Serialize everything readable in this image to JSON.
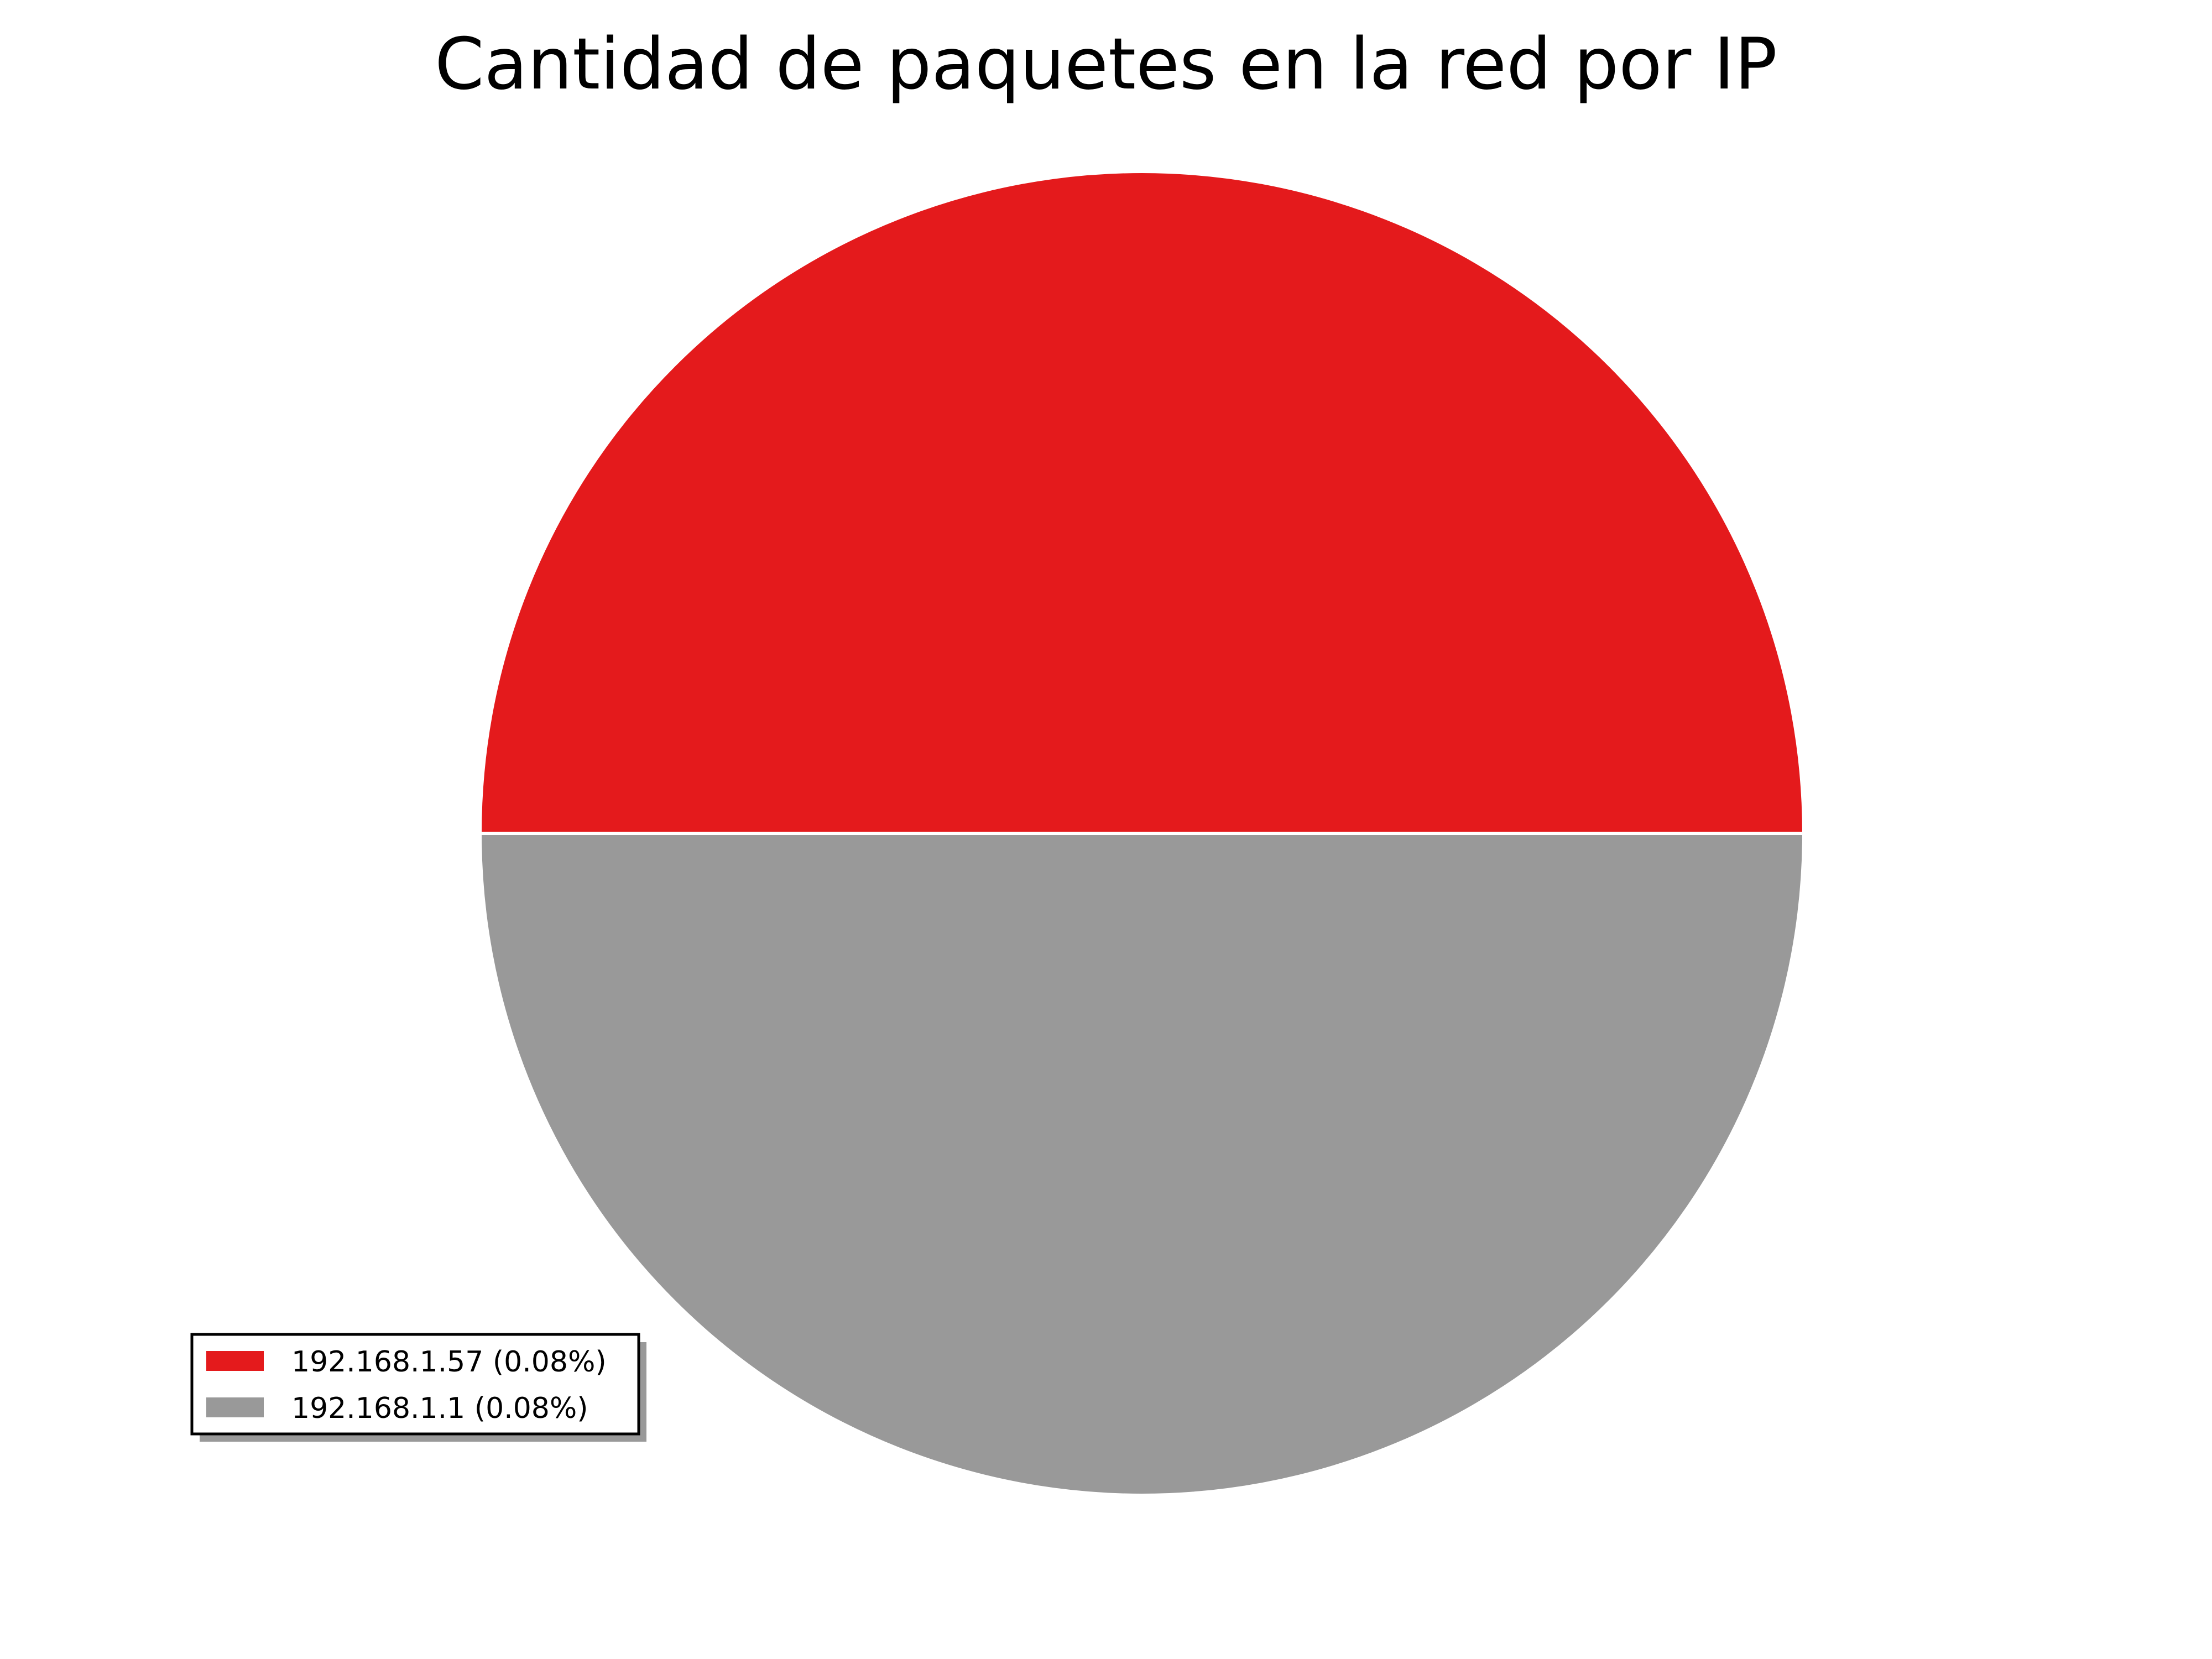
{
  "chart_data": {
    "type": "pie",
    "title": "Cantidad de paquetes en la red por IP",
    "slices": [
      {
        "label": "192.168.1.57 (0.08%)",
        "value": 0.08,
        "color": "#e41a1c"
      },
      {
        "label": "192.168.1.1 (0.08%)",
        "value": 0.08,
        "color": "#999999"
      }
    ],
    "start_angle_deg": 0,
    "direction": "counterclockwise",
    "slice_edge_color": "#ffffff",
    "legend": {
      "placement": "lower-left",
      "shadow": true,
      "frame_color": "#000000"
    }
  }
}
